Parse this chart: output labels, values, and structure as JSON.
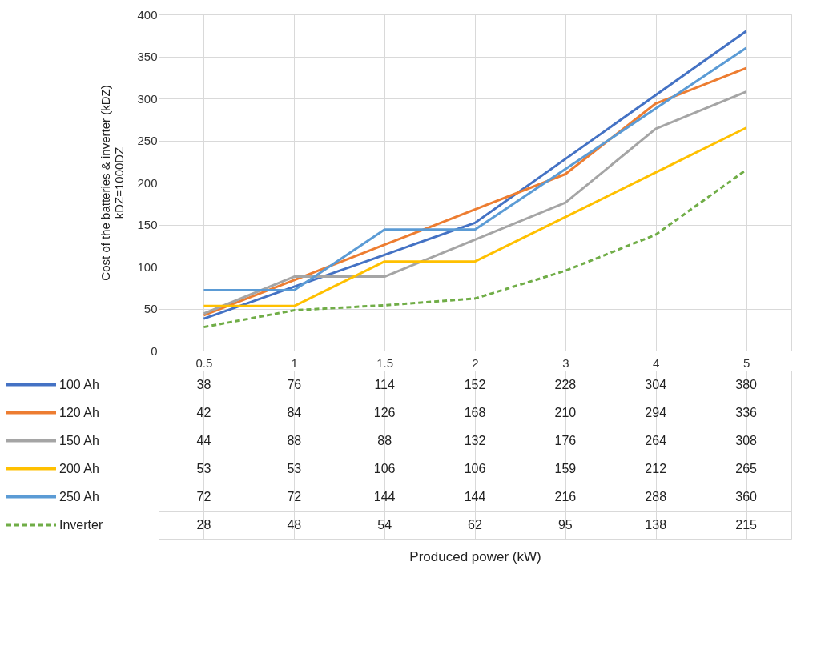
{
  "chart_data": {
    "type": "line",
    "annotations": [
      "Produced power (kW)"
    ],
    "ylabel": "Cost of the batteries  & inverter  (kDZ)\nkDZ=1000DZ",
    "categories": [
      "0.5",
      "1",
      "1.5",
      "2",
      "3",
      "4",
      "5"
    ],
    "ylim": [
      0,
      400
    ],
    "yticks": [
      0,
      50,
      100,
      150,
      200,
      250,
      300,
      350,
      400
    ],
    "grid": true,
    "legend": "bottom",
    "data_labels": true,
    "marker": "none",
    "series": [
      {
        "name": "100 Ah",
        "color": "#4472c4",
        "values": [
          38,
          76,
          114,
          152,
          228,
          304,
          380
        ]
      },
      {
        "name": "120 Ah",
        "color": "#ed7d31",
        "values": [
          42,
          84,
          126,
          168,
          210,
          294,
          336
        ]
      },
      {
        "name": "150 Ah",
        "color": "#a5a5a5",
        "values": [
          44,
          88,
          88,
          132,
          176,
          264,
          308
        ]
      },
      {
        "name": "200 Ah",
        "color": "#ffc000",
        "values": [
          53,
          53,
          106,
          106,
          159,
          212,
          265
        ]
      },
      {
        "name": "250 Ah",
        "color": "#5b9bd5",
        "values": [
          72,
          72,
          144,
          144,
          216,
          288,
          360
        ]
      },
      {
        "name": "Inverter",
        "color": "#70ad47",
        "values": [
          28,
          48,
          54,
          62,
          95,
          138,
          215
        ],
        "line_style": "dashed"
      }
    ]
  }
}
